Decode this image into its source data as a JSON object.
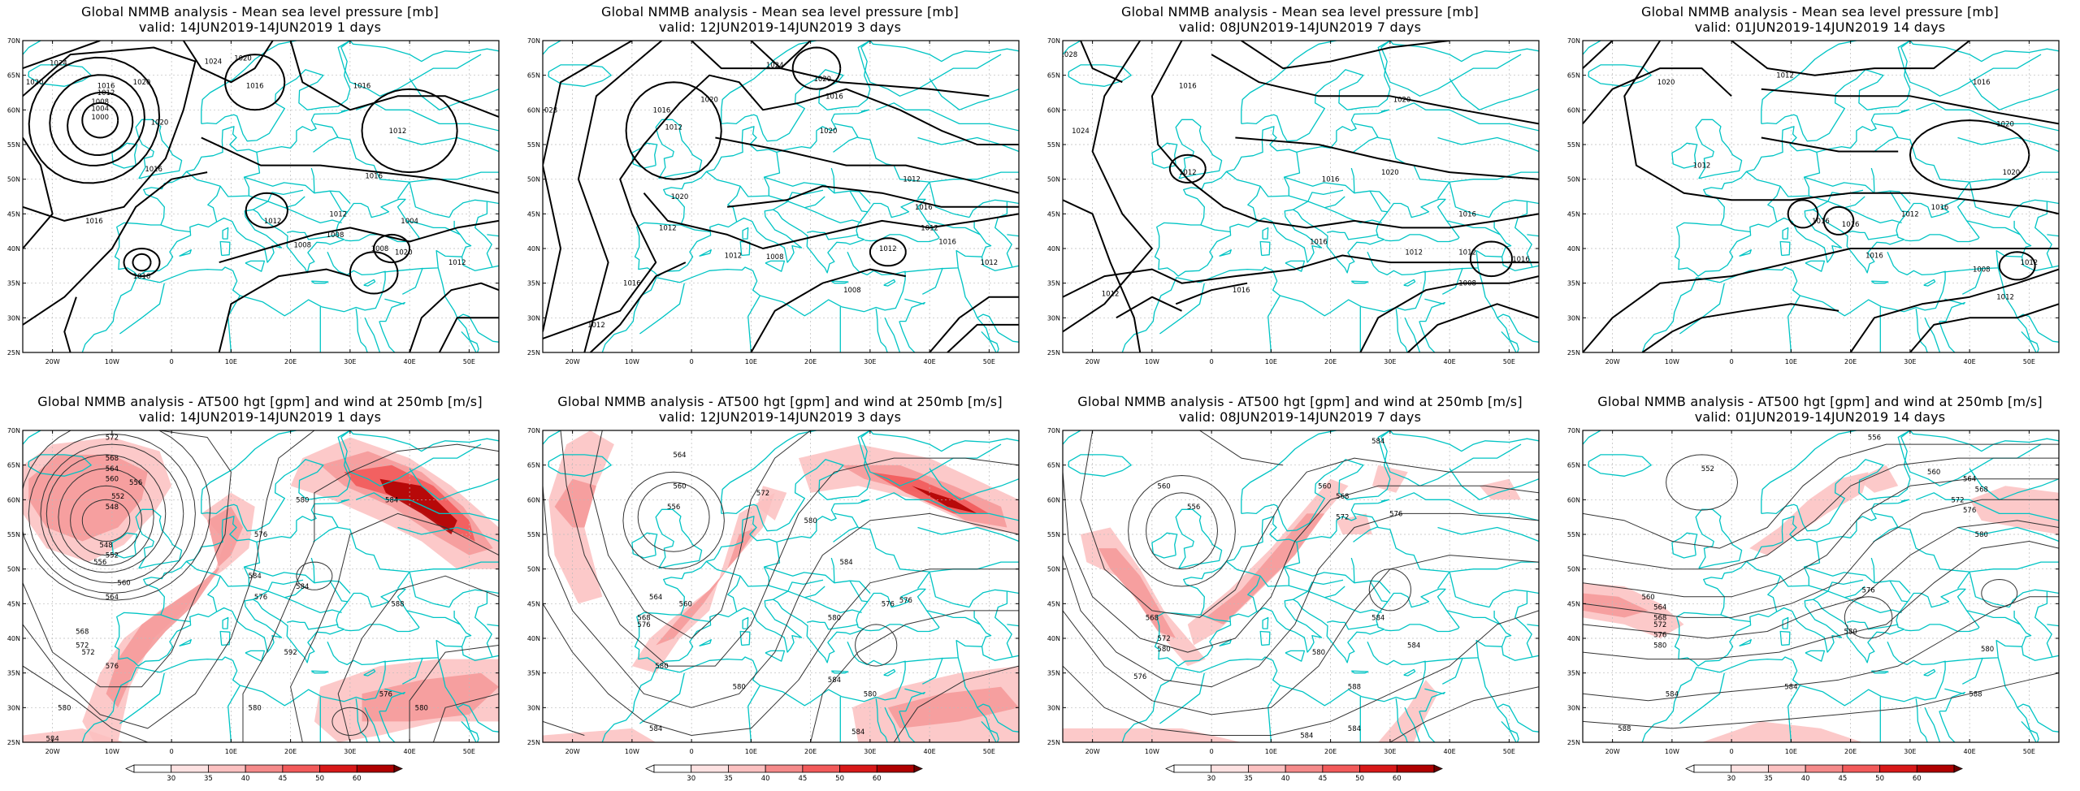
{
  "rows": [
    {
      "key": "mslp",
      "panels": [
        {
          "title": "Global NMMB analysis - Mean sea level pressure [mb]",
          "valid": "valid: 14JUN2019-14JUN2019  1 days",
          "labels": [
            "1024",
            "1020",
            "1016",
            "1012",
            "1008",
            "1004",
            "1000",
            "1020",
            "1016",
            "1020",
            "1016",
            "1024",
            "1020",
            "1016",
            "1012",
            "1016",
            "1012",
            "1008",
            "1016",
            "1012",
            "1008",
            "1004",
            "1020",
            "1016",
            "1008",
            "1012"
          ]
        },
        {
          "title": "Global NMMB analysis - Mean sea level pressure [mb]",
          "valid": "valid: 12JUN2019-14JUN2019  3 days",
          "labels": [
            "1028",
            "1020",
            "1016",
            "1012",
            "1020",
            "1024",
            "1020",
            "1016",
            "1020",
            "1012",
            "1016",
            "1012",
            "1012",
            "1012",
            "1008",
            "1008",
            "1016",
            "1012",
            "1012",
            "1016",
            "1012"
          ]
        },
        {
          "title": "Global NMMB analysis - Mean sea level pressure [mb]",
          "valid": "valid: 08JUN2019-14JUN2019  7 days",
          "labels": [
            "1028",
            "1024",
            "1016",
            "1020",
            "1012",
            "1016",
            "1020",
            "1016",
            "1016",
            "1012",
            "1008",
            "1012",
            "1016",
            "1016",
            "1012"
          ]
        },
        {
          "title": "Global NMMB analysis - Mean sea level pressure [mb]",
          "valid": "valid: 01JUN2019-14JUN2019  14 days",
          "labels": [
            "1020",
            "1012",
            "1016",
            "1020",
            "1012",
            "1020",
            "1016",
            "1016",
            "1016",
            "1012",
            "1016",
            "1008",
            "1012",
            "1012"
          ]
        }
      ]
    },
    {
      "key": "z500",
      "panels": [
        {
          "title": "Global NMMB analysis - AT500 hgt [gpm] and wind at 250mb [m/s]",
          "valid": "valid: 14JUN2019-14JUN2019  1 days",
          "labels": [
            "572",
            "568",
            "564",
            "560",
            "556",
            "552",
            "548",
            "548",
            "552",
            "556",
            "560",
            "564",
            "568",
            "572",
            "576",
            "580",
            "584",
            "584",
            "592",
            "580",
            "576",
            "580",
            "584",
            "588",
            "576",
            "572",
            "584",
            "576",
            "580"
          ]
        },
        {
          "title": "Global NMMB analysis - AT500 hgt [gpm] and wind at 250mb [m/s]",
          "valid": "valid: 12JUN2019-14JUN2019  3 days",
          "labels": [
            "564",
            "560",
            "556",
            "564",
            "568",
            "576",
            "572",
            "580",
            "584",
            "580",
            "576",
            "560",
            "580",
            "584",
            "580",
            "584",
            "580",
            "576",
            "584"
          ]
        },
        {
          "title": "Global NMMB analysis - AT500 hgt [gpm] and wind at 250mb [m/s]",
          "valid": "valid: 08JUN2019-14JUN2019  7 days",
          "labels": [
            "584",
            "560",
            "556",
            "568",
            "572",
            "580",
            "576",
            "560",
            "568",
            "572",
            "576",
            "584",
            "580",
            "584",
            "588",
            "584",
            "584"
          ]
        },
        {
          "title": "Global NMMB analysis - AT500 hgt [gpm] and wind at 250mb [m/s]",
          "valid": "valid: 01JUN2019-14JUN2019  14 days",
          "labels": [
            "552",
            "556",
            "560",
            "564",
            "568",
            "572",
            "576",
            "580",
            "560",
            "564",
            "568",
            "572",
            "576",
            "580",
            "576",
            "580",
            "584",
            "580",
            "584",
            "588",
            "588"
          ]
        }
      ]
    }
  ],
  "lat_labels": [
    "70N",
    "65N",
    "60N",
    "55N",
    "50N",
    "45N",
    "40N",
    "35N",
    "30N",
    "25N"
  ],
  "lon_labels": [
    "20W",
    "10W",
    "0",
    "10E",
    "20E",
    "30E",
    "40E",
    "50E"
  ],
  "colorbar": {
    "ticks": [
      "30",
      "35",
      "40",
      "45",
      "50",
      "60"
    ]
  },
  "colors": {
    "coast": "#00c4c4",
    "contour": "#000000",
    "jet_light": "#fbc0c0",
    "jet_mid": "#f25a5a",
    "jet_dark": "#b00000"
  },
  "domain": {
    "lon_min": -25,
    "lon_max": 55,
    "lat_min": 25,
    "lat_max": 70
  }
}
